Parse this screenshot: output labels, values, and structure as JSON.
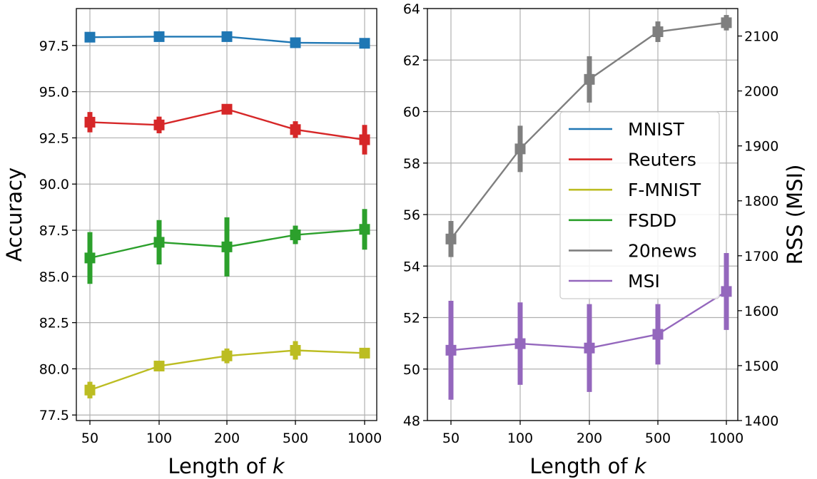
{
  "chart_data": [
    {
      "type": "line",
      "title": "",
      "xlabel": "Length of",
      "xlabel_var": "k",
      "ylabel": "Accuracy",
      "categories": [
        "50",
        "100",
        "200",
        "500",
        "1000"
      ],
      "ylim": [
        77.2,
        99.5
      ],
      "yticks": [
        "77.5",
        "80.0",
        "82.5",
        "85.0",
        "87.5",
        "90.0",
        "92.5",
        "95.0",
        "97.5"
      ],
      "grid": true,
      "series": [
        {
          "name": "MNIST",
          "color": "#1f77b4",
          "values": [
            97.95,
            97.98,
            97.98,
            97.65,
            97.62
          ],
          "errors": [
            0.08,
            0.08,
            0.08,
            0.08,
            0.08
          ]
        },
        {
          "name": "Reuters",
          "color": "#d62728",
          "values": [
            93.35,
            93.2,
            94.05,
            92.95,
            92.4
          ],
          "errors": [
            0.55,
            0.45,
            0.15,
            0.45,
            0.8
          ]
        },
        {
          "name": "F-MNIST",
          "color": "#bcbd22",
          "values": [
            78.85,
            80.15,
            80.7,
            81.0,
            80.85
          ],
          "errors": [
            0.45,
            0.15,
            0.4,
            0.5,
            0.15
          ]
        },
        {
          "name": "FSDD",
          "color": "#2ca02c",
          "values": [
            86.0,
            86.85,
            86.6,
            87.25,
            87.55
          ],
          "errors": [
            1.4,
            1.2,
            1.6,
            0.5,
            1.1
          ]
        }
      ]
    },
    {
      "type": "line",
      "title": "",
      "xlabel": "Length of",
      "xlabel_var": "k",
      "ylabel_right": "RSS (MSI)",
      "categories": [
        "50",
        "100",
        "200",
        "500",
        "1000"
      ],
      "ylim": [
        48,
        64
      ],
      "yticks": [
        "48",
        "50",
        "52",
        "54",
        "56",
        "58",
        "60",
        "62",
        "64"
      ],
      "ylim_right": [
        1400,
        2150
      ],
      "yticks_right": [
        "1400",
        "1500",
        "1600",
        "1700",
        "1800",
        "1900",
        "2000",
        "2100"
      ],
      "grid": true,
      "series": [
        {
          "name": "20news",
          "color": "#7f7f7f",
          "axis": "left",
          "values": [
            55.05,
            58.55,
            61.25,
            63.1,
            63.45
          ],
          "errors": [
            0.7,
            0.9,
            0.9,
            0.4,
            0.3
          ]
        },
        {
          "name": "MSI",
          "color": "#9467bd",
          "axis": "right",
          "values": [
            1528,
            1540,
            1532,
            1557,
            1635
          ],
          "errors": [
            90,
            75,
            80,
            55,
            70
          ]
        }
      ]
    }
  ],
  "legend": {
    "placement": "center-right of right panel",
    "entries": [
      {
        "name": "MNIST",
        "color": "#1f77b4"
      },
      {
        "name": "Reuters",
        "color": "#d62728"
      },
      {
        "name": "F-MNIST",
        "color": "#bcbd22"
      },
      {
        "name": "FSDD",
        "color": "#2ca02c"
      },
      {
        "name": "20news",
        "color": "#7f7f7f"
      },
      {
        "name": "MSI",
        "color": "#9467bd"
      }
    ]
  }
}
